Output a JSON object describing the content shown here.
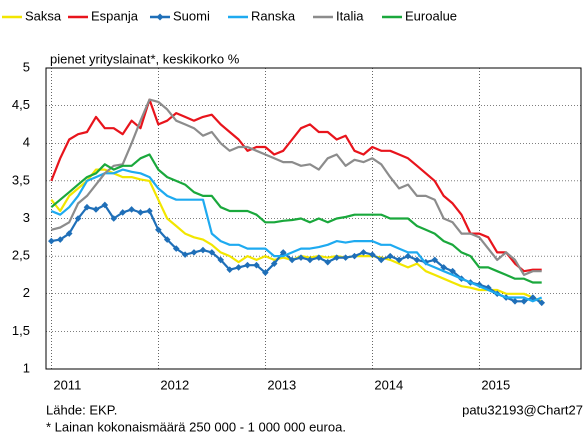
{
  "chart_data": {
    "type": "line",
    "subtitle": "pienet yrityslainat*, keskikorko %",
    "source": "Lähde: EKP.",
    "credit": "patu32193@Chart27",
    "footnote": "* Lainan kokonaismäärä 250 000 - 1 000 000 euroa.",
    "x": [
      2011,
      2011.083,
      2011.167,
      2011.25,
      2011.333,
      2011.417,
      2011.5,
      2011.583,
      2011.667,
      2011.75,
      2011.833,
      2011.917,
      2012,
      2012.083,
      2012.167,
      2012.25,
      2012.333,
      2012.417,
      2012.5,
      2012.583,
      2012.667,
      2012.75,
      2012.833,
      2012.917,
      2013,
      2013.083,
      2013.167,
      2013.25,
      2013.333,
      2013.417,
      2013.5,
      2013.583,
      2013.667,
      2013.75,
      2013.833,
      2013.917,
      2014,
      2014.083,
      2014.167,
      2014.25,
      2014.333,
      2014.417,
      2014.5,
      2014.583,
      2014.667,
      2014.75,
      2014.833,
      2014.917,
      2015,
      2015.083,
      2015.167,
      2015.25,
      2015.333,
      2015.417,
      2015.5,
      2015.583
    ],
    "series": [
      {
        "name": "Saksa",
        "color": "#f2e600",
        "values": [
          3.25,
          3.1,
          3.3,
          3.4,
          3.5,
          3.65,
          3.65,
          3.6,
          3.55,
          3.55,
          3.52,
          3.5,
          3.25,
          3.0,
          2.9,
          2.8,
          2.75,
          2.72,
          2.65,
          2.55,
          2.5,
          2.42,
          2.5,
          2.45,
          2.5,
          2.45,
          2.48,
          2.45,
          2.5,
          2.48,
          2.5,
          2.48,
          2.5,
          2.48,
          2.5,
          2.5,
          2.5,
          2.48,
          2.45,
          2.4,
          2.35,
          2.4,
          2.3,
          2.25,
          2.2,
          2.15,
          2.1,
          2.08,
          2.05,
          2.05,
          2.05,
          2.0,
          2.0,
          2.0,
          1.95,
          1.9
        ]
      },
      {
        "name": "Espanja",
        "color": "#e8141c",
        "values": [
          3.5,
          3.8,
          4.05,
          4.12,
          4.15,
          4.35,
          4.2,
          4.2,
          4.12,
          4.3,
          4.2,
          4.58,
          4.25,
          4.3,
          4.4,
          4.35,
          4.3,
          4.35,
          4.38,
          4.25,
          4.15,
          4.05,
          3.9,
          3.95,
          3.95,
          3.85,
          3.9,
          4.05,
          4.2,
          4.25,
          4.15,
          4.15,
          4.05,
          4.1,
          3.9,
          3.85,
          3.95,
          3.9,
          3.9,
          3.85,
          3.8,
          3.7,
          3.6,
          3.5,
          3.3,
          3.2,
          3.05,
          2.8,
          2.8,
          2.75,
          2.55,
          2.55,
          2.4,
          2.3,
          2.32,
          2.32
        ]
      },
      {
        "name": "Suomi",
        "color": "#1f6fb8",
        "marker": "diamond",
        "values": [
          2.7,
          2.72,
          2.8,
          3.0,
          3.15,
          3.12,
          3.18,
          3.0,
          3.08,
          3.12,
          3.08,
          3.1,
          2.85,
          2.72,
          2.6,
          2.52,
          2.55,
          2.58,
          2.55,
          2.45,
          2.32,
          2.35,
          2.38,
          2.38,
          2.28,
          2.4,
          2.55,
          2.45,
          2.48,
          2.45,
          2.48,
          2.42,
          2.48,
          2.48,
          2.5,
          2.55,
          2.52,
          2.45,
          2.5,
          2.45,
          2.5,
          2.45,
          2.42,
          2.45,
          2.35,
          2.3,
          2.2,
          2.15,
          2.12,
          2.08,
          2.0,
          1.95,
          1.9,
          1.9,
          1.95,
          1.88
        ]
      },
      {
        "name": "Ranska",
        "color": "#1eaaf0",
        "values": [
          3.1,
          3.05,
          3.15,
          3.3,
          3.5,
          3.55,
          3.6,
          3.6,
          3.65,
          3.62,
          3.6,
          3.55,
          3.4,
          3.3,
          3.25,
          3.25,
          3.25,
          3.25,
          2.8,
          2.7,
          2.65,
          2.65,
          2.6,
          2.6,
          2.6,
          2.5,
          2.5,
          2.55,
          2.6,
          2.6,
          2.62,
          2.65,
          2.7,
          2.68,
          2.7,
          2.7,
          2.7,
          2.65,
          2.65,
          2.6,
          2.55,
          2.55,
          2.4,
          2.35,
          2.3,
          2.25,
          2.2,
          2.15,
          2.1,
          2.05,
          2.0,
          1.95,
          1.95,
          1.95,
          1.9,
          1.95
        ]
      },
      {
        "name": "Italia",
        "color": "#8c8c8c",
        "values": [
          2.85,
          2.88,
          2.95,
          3.2,
          3.3,
          3.45,
          3.6,
          3.7,
          3.72,
          4.0,
          4.3,
          4.58,
          4.55,
          4.45,
          4.3,
          4.25,
          4.2,
          4.1,
          4.15,
          4.0,
          3.9,
          3.95,
          3.95,
          3.9,
          3.85,
          3.8,
          3.75,
          3.75,
          3.7,
          3.72,
          3.65,
          3.8,
          3.85,
          3.7,
          3.78,
          3.75,
          3.8,
          3.72,
          3.55,
          3.4,
          3.45,
          3.3,
          3.3,
          3.25,
          3.0,
          2.95,
          2.8,
          2.8,
          2.75,
          2.6,
          2.45,
          2.55,
          2.45,
          2.25,
          2.3,
          2.3
        ]
      },
      {
        "name": "Euroalue",
        "color": "#1aa83c",
        "values": [
          3.15,
          3.25,
          3.35,
          3.45,
          3.55,
          3.6,
          3.72,
          3.65,
          3.7,
          3.7,
          3.8,
          3.85,
          3.65,
          3.55,
          3.5,
          3.45,
          3.35,
          3.3,
          3.3,
          3.15,
          3.1,
          3.1,
          3.1,
          3.05,
          2.95,
          2.95,
          2.97,
          2.98,
          3.0,
          2.95,
          3.0,
          2.95,
          3.0,
          3.02,
          3.05,
          3.05,
          3.05,
          3.05,
          3.0,
          3.0,
          3.0,
          2.9,
          2.85,
          2.8,
          2.7,
          2.65,
          2.55,
          2.5,
          2.35,
          2.35,
          2.3,
          2.25,
          2.2,
          2.2,
          2.15,
          2.15
        ]
      }
    ],
    "xlim": [
      2010.95,
      2015.95
    ],
    "xticks": [
      2011,
      2012,
      2013,
      2014,
      2015
    ],
    "ylim": [
      1,
      5
    ],
    "yticks": [
      1,
      {
        "value": 1.5,
        "label": "1,5"
      },
      2,
      {
        "value": 2.5,
        "label": "2,5"
      },
      3,
      {
        "value": 3.5,
        "label": "3,5"
      },
      4,
      {
        "value": 4.5,
        "label": "4,5"
      },
      5
    ],
    "grid": true,
    "legend": "top"
  }
}
